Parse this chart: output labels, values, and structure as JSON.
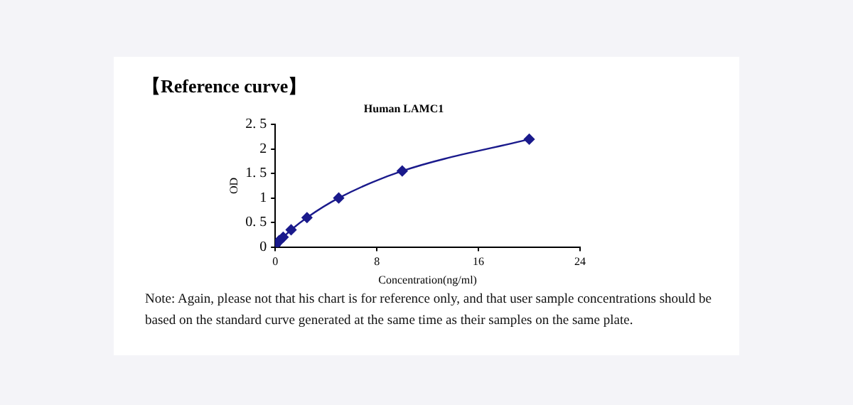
{
  "chart_data": {
    "type": "line",
    "title": "【Reference curve】",
    "subtitle": "Human LAMC1",
    "xlabel": "Concentration(ng/ml)",
    "ylabel": "OD",
    "x": [
      0,
      0.156,
      0.313,
      0.625,
      1.25,
      2.5,
      5,
      10,
      20
    ],
    "series": [
      {
        "color": "#1a1a8c",
        "values": [
          0.03,
          0.08,
          0.13,
          0.2,
          0.35,
          0.6,
          1.0,
          1.55,
          2.2
        ]
      }
    ],
    "xlim": [
      0,
      24
    ],
    "xticks": [
      0,
      8,
      16,
      24
    ],
    "ylim": [
      0,
      2.5
    ],
    "yticks": [
      0,
      {
        "value": 0.5,
        "label": "0. 5"
      },
      1,
      {
        "value": 1.5,
        "label": "1. 5"
      },
      2,
      {
        "value": 2.5,
        "label": "2. 5"
      }
    ],
    "grid": false,
    "legend": false,
    "marker": "diamond",
    "line_style": "solid",
    "annotations": [
      "Note: Again, please not that his chart is for reference only, and that user sample concentrations should be based on the standard curve generated at the same time as their samples on the same plate."
    ]
  }
}
